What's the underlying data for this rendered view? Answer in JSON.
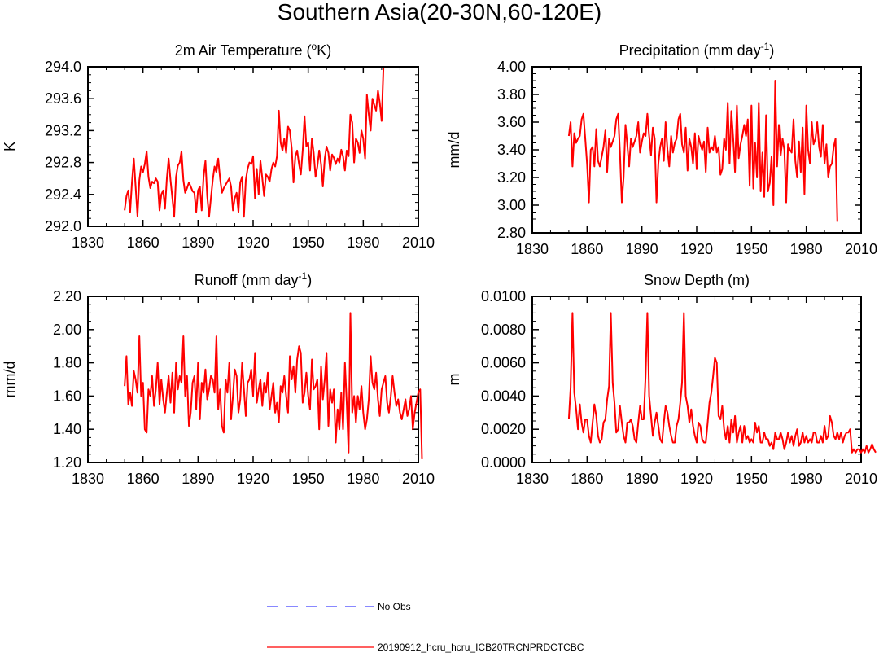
{
  "figure": {
    "title": "Southern Asia(20-30N,60-120E)",
    "legend": [
      {
        "label": "No Obs",
        "color": "#4040ff",
        "style": "dashed"
      },
      {
        "label": "20190912_hcru_hcru_ICB20TRCNPRDCTCBC",
        "color": "#ff0000",
        "style": "solid"
      }
    ]
  },
  "chart_data": [
    {
      "type": "line",
      "title": "2m Air Temperature (",
      "title_sup": "o",
      "title_tail": "K)",
      "ylabel": "K",
      "xlabel": "",
      "xlim": [
        1830,
        2010
      ],
      "ylim": [
        292.0,
        294.0
      ],
      "xticks": [
        1830,
        1860,
        1890,
        1920,
        1950,
        1980,
        2010
      ],
      "yticks": [
        292.0,
        292.4,
        292.8,
        293.2,
        293.6,
        294.0
      ],
      "ytick_labels": [
        "292.0",
        "292.4",
        "292.8",
        "293.2",
        "293.6",
        "294.0"
      ],
      "series": [
        {
          "name": "20190912_hcru_hcru_ICB20TRCNPRDCTCBC",
          "color": "#ff0000",
          "x_start": 1850,
          "values": [
            292.2,
            292.38,
            292.45,
            292.18,
            292.55,
            292.85,
            292.5,
            292.13,
            292.58,
            292.75,
            292.68,
            292.78,
            292.94,
            292.62,
            292.48,
            292.56,
            292.54,
            292.6,
            292.56,
            292.2,
            292.4,
            292.45,
            292.22,
            292.6,
            292.85,
            292.58,
            292.35,
            292.12,
            292.62,
            292.76,
            292.8,
            292.94,
            292.58,
            292.42,
            292.48,
            292.55,
            292.5,
            292.44,
            292.42,
            292.18,
            292.45,
            292.5,
            292.2,
            292.62,
            292.82,
            292.38,
            292.12,
            292.35,
            292.58,
            292.75,
            292.68,
            292.85,
            292.6,
            292.42,
            292.48,
            292.52,
            292.56,
            292.6,
            292.5,
            292.2,
            292.35,
            292.42,
            292.18,
            292.55,
            292.62,
            292.12,
            292.58,
            292.72,
            292.8,
            292.78,
            292.88,
            292.35,
            292.72,
            292.4,
            292.82,
            292.6,
            292.38,
            292.65,
            292.62,
            292.56,
            292.72,
            292.8,
            292.75,
            292.88,
            293.45,
            293.05,
            292.95,
            293.1,
            292.92,
            293.25,
            293.2,
            292.98,
            292.55,
            292.88,
            292.95,
            292.78,
            292.65,
            292.95,
            293.38,
            293.0,
            293.05,
            292.7,
            293.1,
            292.92,
            292.62,
            292.75,
            292.95,
            292.78,
            292.5,
            292.85,
            293.0,
            292.92,
            292.7,
            292.9,
            292.86,
            292.78,
            292.85,
            292.8,
            292.96,
            292.88,
            292.7,
            292.95,
            292.88,
            293.4,
            293.3,
            292.8,
            293.1,
            293.05,
            292.92,
            293.2,
            293.1,
            292.85,
            293.65,
            293.4,
            293.2,
            293.6,
            293.52,
            293.45,
            293.7,
            293.55,
            293.32,
            293.98
          ]
        }
      ]
    },
    {
      "type": "line",
      "title": "Precipitation (mm day",
      "title_sup": "-1",
      "title_tail": ")",
      "ylabel": "mm/d",
      "xlabel": "",
      "xlim": [
        1830,
        2010
      ],
      "ylim": [
        2.8,
        4.0
      ],
      "xticks": [
        1830,
        1860,
        1890,
        1920,
        1950,
        1980,
        2010
      ],
      "yticks": [
        2.8,
        3.0,
        3.2,
        3.4,
        3.6,
        3.8,
        4.0
      ],
      "ytick_labels": [
        "2.80",
        "3.00",
        "3.20",
        "3.40",
        "3.60",
        "3.80",
        "4.00"
      ],
      "series": [
        {
          "name": "20190912_hcru_hcru_ICB20TRCNPRDCTCBC",
          "color": "#ff0000",
          "x_start": 1850,
          "values": [
            3.5,
            3.6,
            3.28,
            3.52,
            3.45,
            3.48,
            3.5,
            3.62,
            3.66,
            3.48,
            3.3,
            3.02,
            3.4,
            3.42,
            3.28,
            3.55,
            3.32,
            3.28,
            3.35,
            3.42,
            3.54,
            3.24,
            3.48,
            3.42,
            3.46,
            3.5,
            3.62,
            3.66,
            3.38,
            3.02,
            3.2,
            3.58,
            3.44,
            3.28,
            3.48,
            3.42,
            3.46,
            3.5,
            3.6,
            3.38,
            3.46,
            3.52,
            3.5,
            3.66,
            3.5,
            3.36,
            3.56,
            3.48,
            3.02,
            3.3,
            3.42,
            3.48,
            3.32,
            3.6,
            3.4,
            3.28,
            3.5,
            3.38,
            3.45,
            3.48,
            3.62,
            3.66,
            3.44,
            3.38,
            3.56,
            3.25,
            3.48,
            3.42,
            3.3,
            3.52,
            3.26,
            3.5,
            3.44,
            3.4,
            3.46,
            3.24,
            3.56,
            3.38,
            3.42,
            3.4,
            3.5,
            3.38,
            3.42,
            3.22,
            3.26,
            3.48,
            3.4,
            3.74,
            3.3,
            3.68,
            3.48,
            3.24,
            3.72,
            3.34,
            3.44,
            3.5,
            3.58,
            3.5,
            3.62,
            3.14,
            3.72,
            3.12,
            3.45,
            3.2,
            3.74,
            3.1,
            3.38,
            3.06,
            3.65,
            3.1,
            3.16,
            3.35,
            3.0,
            3.9,
            3.28,
            3.58,
            3.36,
            3.48,
            3.4,
            3.02,
            3.44,
            3.4,
            3.38,
            3.62,
            3.32,
            3.2,
            3.46,
            3.24,
            3.56,
            3.08,
            3.72,
            3.4,
            3.3,
            3.6,
            3.44,
            3.48,
            3.6,
            3.42,
            3.35,
            3.58,
            3.3,
            3.44,
            3.2,
            3.28,
            3.3,
            3.42,
            3.48,
            2.88
          ]
        }
      ]
    },
    {
      "type": "line",
      "title": "Runoff (mm day",
      "title_sup": "-1",
      "title_tail": ")",
      "ylabel": "mm/d",
      "xlabel": "",
      "xlim": [
        1830,
        2010
      ],
      "ylim": [
        1.2,
        2.2
      ],
      "xticks": [
        1830,
        1860,
        1890,
        1920,
        1950,
        1980,
        2010
      ],
      "yticks": [
        1.2,
        1.4,
        1.6,
        1.8,
        2.0,
        2.2
      ],
      "ytick_labels": [
        "1.20",
        "1.40",
        "1.60",
        "1.80",
        "2.00",
        "2.20"
      ],
      "series": [
        {
          "name": "20190912_hcru_hcru_ICB20TRCNPRDCTCBC",
          "color": "#ff0000",
          "x_start": 1850,
          "values": [
            1.66,
            1.84,
            1.55,
            1.62,
            1.54,
            1.75,
            1.7,
            1.62,
            1.96,
            1.6,
            1.68,
            1.4,
            1.38,
            1.64,
            1.6,
            1.72,
            1.54,
            1.64,
            1.8,
            1.55,
            1.7,
            1.58,
            1.5,
            1.62,
            1.72,
            1.56,
            1.74,
            1.5,
            1.8,
            1.64,
            1.72,
            1.68,
            1.96,
            1.6,
            1.72,
            1.42,
            1.5,
            1.68,
            1.72,
            1.52,
            1.8,
            1.46,
            1.68,
            1.62,
            1.76,
            1.58,
            1.64,
            1.72,
            1.7,
            1.62,
            1.96,
            1.52,
            1.64,
            1.42,
            1.38,
            1.7,
            1.62,
            1.8,
            1.46,
            1.6,
            1.76,
            1.72,
            1.5,
            1.58,
            1.8,
            1.64,
            1.48,
            1.68,
            1.7,
            1.76,
            1.6,
            1.86,
            1.56,
            1.64,
            1.7,
            1.54,
            1.68,
            1.62,
            1.74,
            1.52,
            1.6,
            1.68,
            1.5,
            1.56,
            1.44,
            1.66,
            1.62,
            1.72,
            1.6,
            1.5,
            1.84,
            1.7,
            1.78,
            1.62,
            1.82,
            1.9,
            1.86,
            1.56,
            1.62,
            1.74,
            1.6,
            1.52,
            1.82,
            1.64,
            1.66,
            1.7,
            1.4,
            1.78,
            1.58,
            1.7,
            1.86,
            1.42,
            1.64,
            1.56,
            1.64,
            1.32,
            1.52,
            1.4,
            1.62,
            1.4,
            1.8,
            1.56,
            1.26,
            2.1,
            1.5,
            1.6,
            1.44,
            1.6,
            1.52,
            1.66,
            1.5,
            1.4,
            1.46,
            1.58,
            1.84,
            1.68,
            1.64,
            1.74,
            1.58,
            1.48,
            1.64,
            1.68,
            1.72,
            1.56,
            1.5,
            1.6,
            1.72,
            1.62,
            1.54,
            1.58,
            1.5,
            1.46,
            1.52,
            1.58,
            1.48,
            1.52,
            1.6,
            1.4,
            1.5,
            1.56,
            1.62,
            1.64,
            1.22
          ]
        }
      ]
    },
    {
      "type": "line",
      "title": "Snow Depth (m)",
      "title_sup": "",
      "title_tail": "",
      "ylabel": "m",
      "xlabel": "",
      "xlim": [
        1830,
        2010
      ],
      "ylim": [
        0.0,
        0.01
      ],
      "xticks": [
        1830,
        1860,
        1890,
        1920,
        1950,
        1980,
        2010
      ],
      "yticks": [
        0.0,
        0.002,
        0.004,
        0.006,
        0.008,
        0.01
      ],
      "ytick_labels": [
        "0.0000",
        "0.0020",
        "0.0040",
        "0.0060",
        "0.0080",
        "0.0100"
      ],
      "series": [
        {
          "name": "20190912_hcru_hcru_ICB20TRCNPRDCTCBC",
          "color": "#ff0000",
          "x_start": 1850,
          "values": [
            0.0026,
            0.0045,
            0.009,
            0.0042,
            0.0032,
            0.002,
            0.0035,
            0.0024,
            0.0018,
            0.0026,
            0.0026,
            0.0016,
            0.0012,
            0.0024,
            0.0035,
            0.0028,
            0.0016,
            0.0012,
            0.0014,
            0.0024,
            0.0026,
            0.0038,
            0.0046,
            0.009,
            0.0048,
            0.0036,
            0.0018,
            0.002,
            0.0034,
            0.0024,
            0.0016,
            0.0012,
            0.0024,
            0.0024,
            0.0026,
            0.0022,
            0.0014,
            0.0012,
            0.0024,
            0.0034,
            0.0026,
            0.0026,
            0.0052,
            0.009,
            0.004,
            0.0028,
            0.0016,
            0.0024,
            0.003,
            0.0022,
            0.0014,
            0.0012,
            0.0024,
            0.0034,
            0.003,
            0.0022,
            0.0016,
            0.0012,
            0.0012,
            0.0022,
            0.0026,
            0.0036,
            0.0048,
            0.009,
            0.004,
            0.0034,
            0.0024,
            0.0032,
            0.0022,
            0.0016,
            0.0012,
            0.0024,
            0.0022,
            0.0014,
            0.0012,
            0.0012,
            0.0024,
            0.0036,
            0.0042,
            0.0052,
            0.0063,
            0.006,
            0.0028,
            0.0026,
            0.0034,
            0.002,
            0.0014,
            0.0022,
            0.0012,
            0.0026,
            0.0018,
            0.0028,
            0.0012,
            0.0018,
            0.0022,
            0.0012,
            0.0022,
            0.0014,
            0.0016,
            0.0012,
            0.0014,
            0.0012,
            0.0024,
            0.0018,
            0.0022,
            0.0012,
            0.0012,
            0.0018,
            0.0014,
            0.0014,
            0.001,
            0.0012,
            0.0008,
            0.0018,
            0.0014,
            0.0014,
            0.0018,
            0.0014,
            0.0008,
            0.0012,
            0.0018,
            0.0012,
            0.0016,
            0.001,
            0.0016,
            0.002,
            0.001,
            0.0012,
            0.0018,
            0.0012,
            0.0016,
            0.0012,
            0.0014,
            0.0012,
            0.0018,
            0.0018,
            0.0012,
            0.0012,
            0.0016,
            0.0012,
            0.0022,
            0.0014,
            0.0016,
            0.0028,
            0.0024,
            0.0016,
            0.0014,
            0.0018,
            0.0014,
            0.0018,
            0.0012,
            0.0016,
            0.0018,
            0.0018,
            0.002,
            0.0006,
            0.0008,
            0.0006,
            0.0008,
            0.0008,
            0.0006,
            0.0008,
            0.0006,
            0.001,
            0.0006,
            0.0008,
            0.0011,
            0.0008,
            0.0006
          ]
        }
      ]
    }
  ]
}
